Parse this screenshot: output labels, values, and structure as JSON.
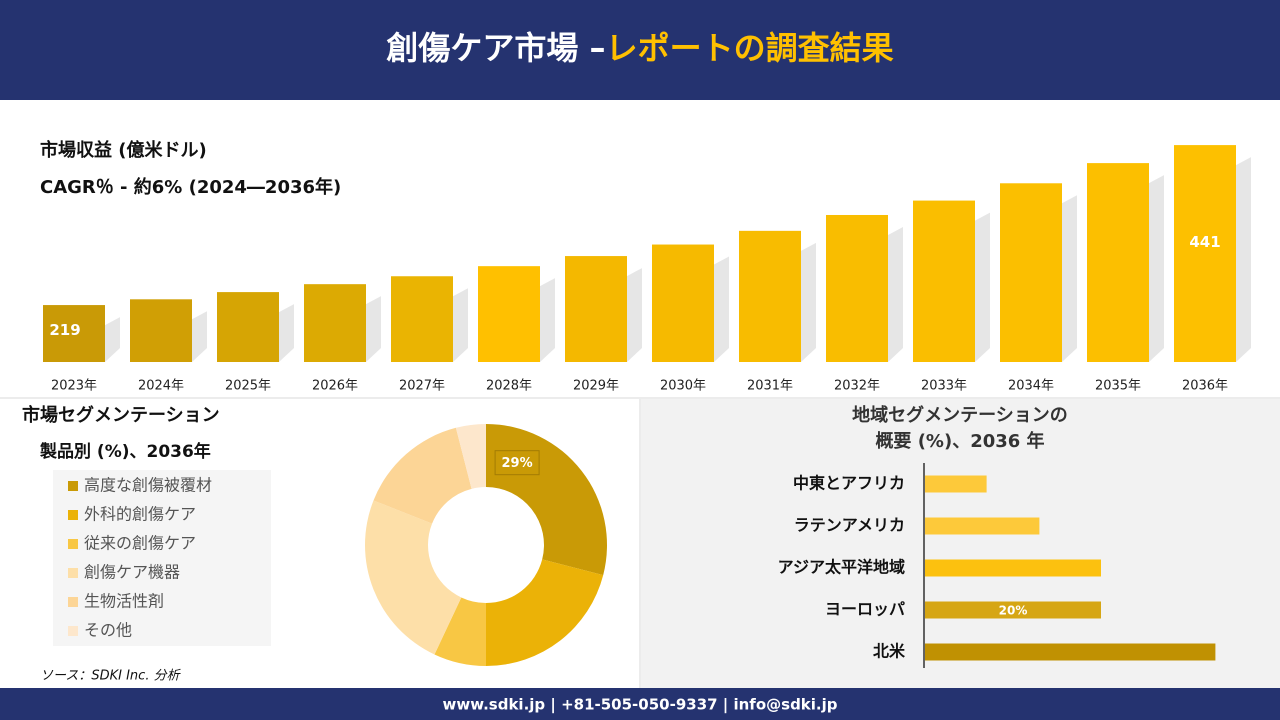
{
  "header": {
    "title": "創傷ケア市場 –",
    "title_highlight": "レポートの調査結果"
  },
  "chart_data": [
    {
      "type": "bar",
      "title": "市場収益 (億米ドル)",
      "subtitle": "CAGR％ - 約6% (2024―2036年)",
      "categories": [
        "2023年",
        "2024年",
        "2025年",
        "2026年",
        "2027年",
        "2028年",
        "2029年",
        "2030年",
        "2031年",
        "2032年",
        "2033年",
        "2034年",
        "2035年",
        "2036年"
      ],
      "values": [
        219,
        227,
        237,
        248,
        259,
        273,
        287,
        303,
        322,
        344,
        364,
        388,
        416,
        441
      ],
      "value_labels": [
        "219",
        null,
        null,
        null,
        null,
        null,
        null,
        null,
        null,
        null,
        null,
        null,
        null,
        "441"
      ],
      "colors": [
        "#c99a06",
        "#d09f05",
        "#d6a504",
        "#dcaa03",
        "#eab402",
        "#ffc000",
        "#f4b800",
        "#f6ba00",
        "#f8bc00",
        "#f9bd00",
        "#fabe00",
        "#fbbf00",
        "#fcbf00",
        "#fdc000"
      ],
      "ylim": [
        140,
        460
      ]
    },
    {
      "type": "donut",
      "title": "市場セグメンテーション",
      "subtitle": "製品別 (%)、2036年",
      "categories": [
        "高度な創傷被覆材",
        "外科的創傷ケア",
        "従来の創傷ケア",
        "創傷ケア機器",
        "生物活性剤",
        "その他"
      ],
      "values": [
        29,
        21,
        7,
        24,
        15,
        4
      ],
      "value_labels": [
        "29%",
        null,
        null,
        null,
        null,
        null
      ],
      "colors": [
        "#c99a06",
        "#ebb207",
        "#f8c744",
        "#fddfa8",
        "#fcd596",
        "#fde7cc"
      ]
    },
    {
      "type": "bar",
      "horizontal": true,
      "title": [
        "地域セグメンテーションの",
        "概要 (%)、2036 年"
      ],
      "categories": [
        "中東とアフリカ",
        "ラテンアメリカ",
        "アジア太平洋地域",
        "ヨーロッパ",
        "北米"
      ],
      "values": [
        7,
        13,
        20,
        20,
        33
      ],
      "value_labels": [
        null,
        null,
        null,
        "20%",
        null
      ],
      "colors": [
        "#fdc93a",
        "#fdc93a",
        "#fcc10f",
        "#d6a614",
        "#c09102"
      ],
      "xlim": [
        0,
        35
      ]
    }
  ],
  "source": "ソース：SDKI Inc. 分析",
  "footer": "www.sdki.jp | +81-505-050-9337 | info@sdki.jp"
}
